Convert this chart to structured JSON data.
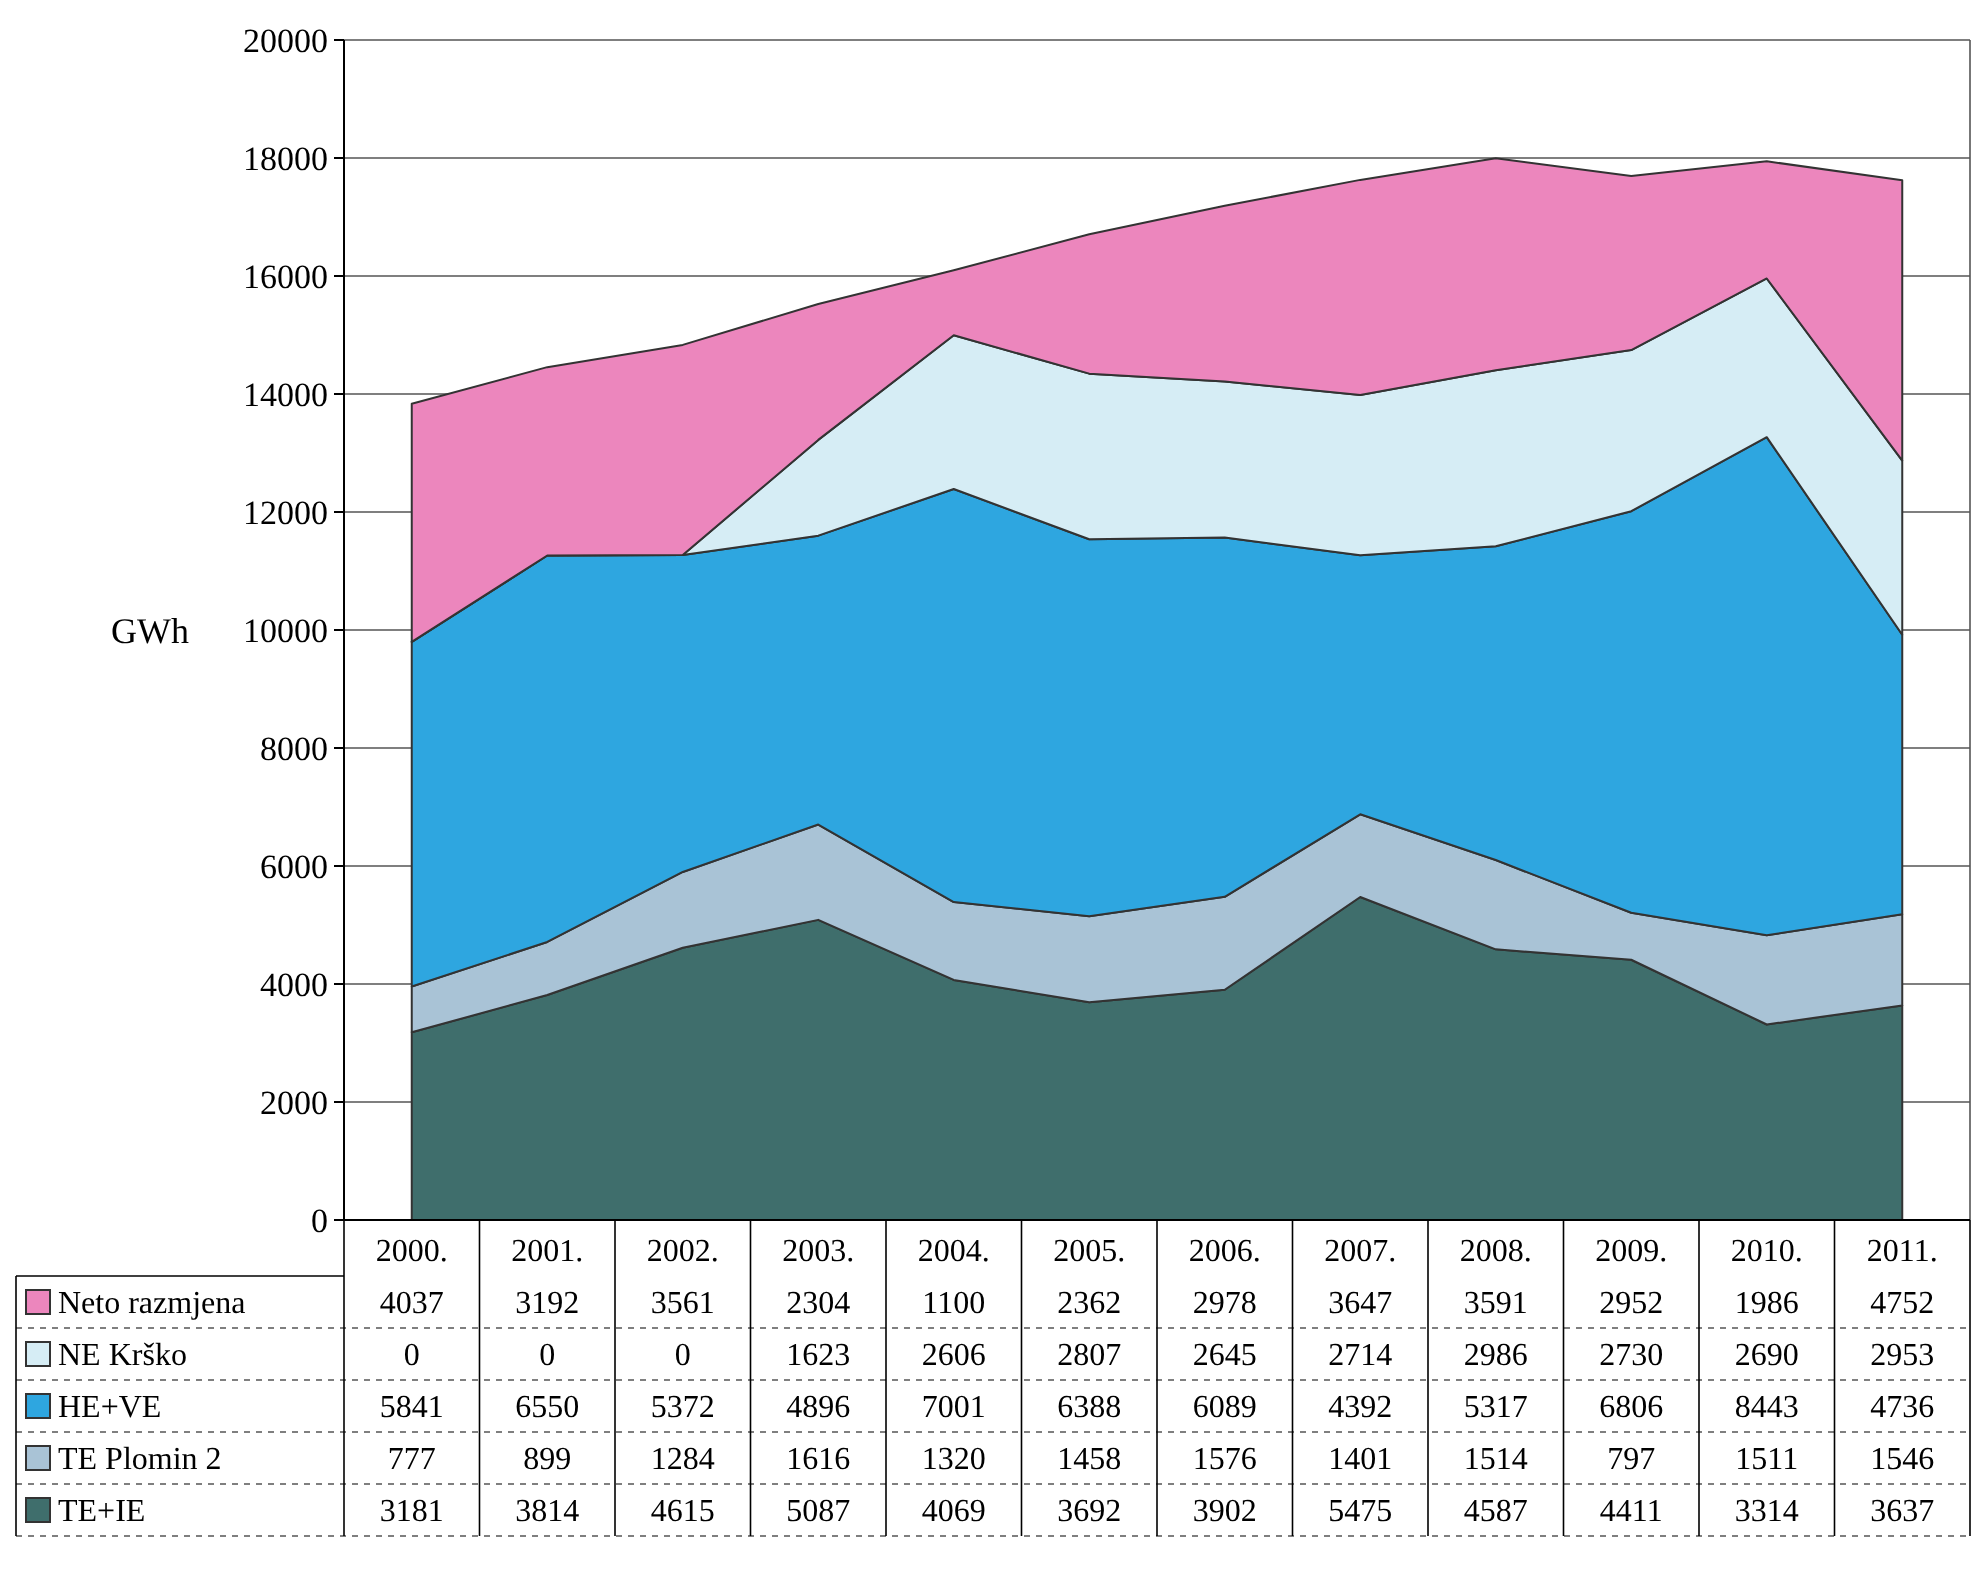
{
  "chart_data": {
    "type": "area",
    "stacked": true,
    "ylabel": "GWh",
    "categories": [
      "2000.",
      "2001.",
      "2002.",
      "2003.",
      "2004.",
      "2005.",
      "2006.",
      "2007.",
      "2008.",
      "2009.",
      "2010.",
      "2011."
    ],
    "ylim": [
      0,
      20000
    ],
    "yticks": [
      0,
      2000,
      4000,
      6000,
      8000,
      10000,
      12000,
      14000,
      16000,
      18000,
      20000
    ],
    "grid": "y",
    "legend": "bottom",
    "data_labels": true,
    "series": [
      {
        "name": "TE+IE",
        "color": "#3f6e6c",
        "values": [
          3181,
          3814,
          4615,
          5087,
          4069,
          3692,
          3902,
          5475,
          4587,
          4411,
          3314,
          3637
        ]
      },
      {
        "name": "TE Plomin 2",
        "color": "#a9c3d6",
        "values": [
          777,
          899,
          1284,
          1616,
          1320,
          1458,
          1576,
          1401,
          1514,
          797,
          1511,
          1546
        ]
      },
      {
        "name": "HE+VE",
        "color": "#2ea6e0",
        "values": [
          5841,
          6550,
          5372,
          4896,
          7001,
          6388,
          6089,
          4392,
          5317,
          6806,
          8443,
          4736
        ]
      },
      {
        "name": "NE Krško",
        "color": "#d6edf5",
        "values": [
          0,
          0,
          0,
          1623,
          2606,
          2807,
          2645,
          2714,
          2986,
          2730,
          2690,
          2953
        ]
      },
      {
        "name": "Neto razmjena",
        "color": "#ec86bd",
        "values": [
          4037,
          3192,
          3561,
          2304,
          1100,
          2362,
          2978,
          3647,
          3591,
          2952,
          1986,
          4752
        ]
      }
    ]
  }
}
